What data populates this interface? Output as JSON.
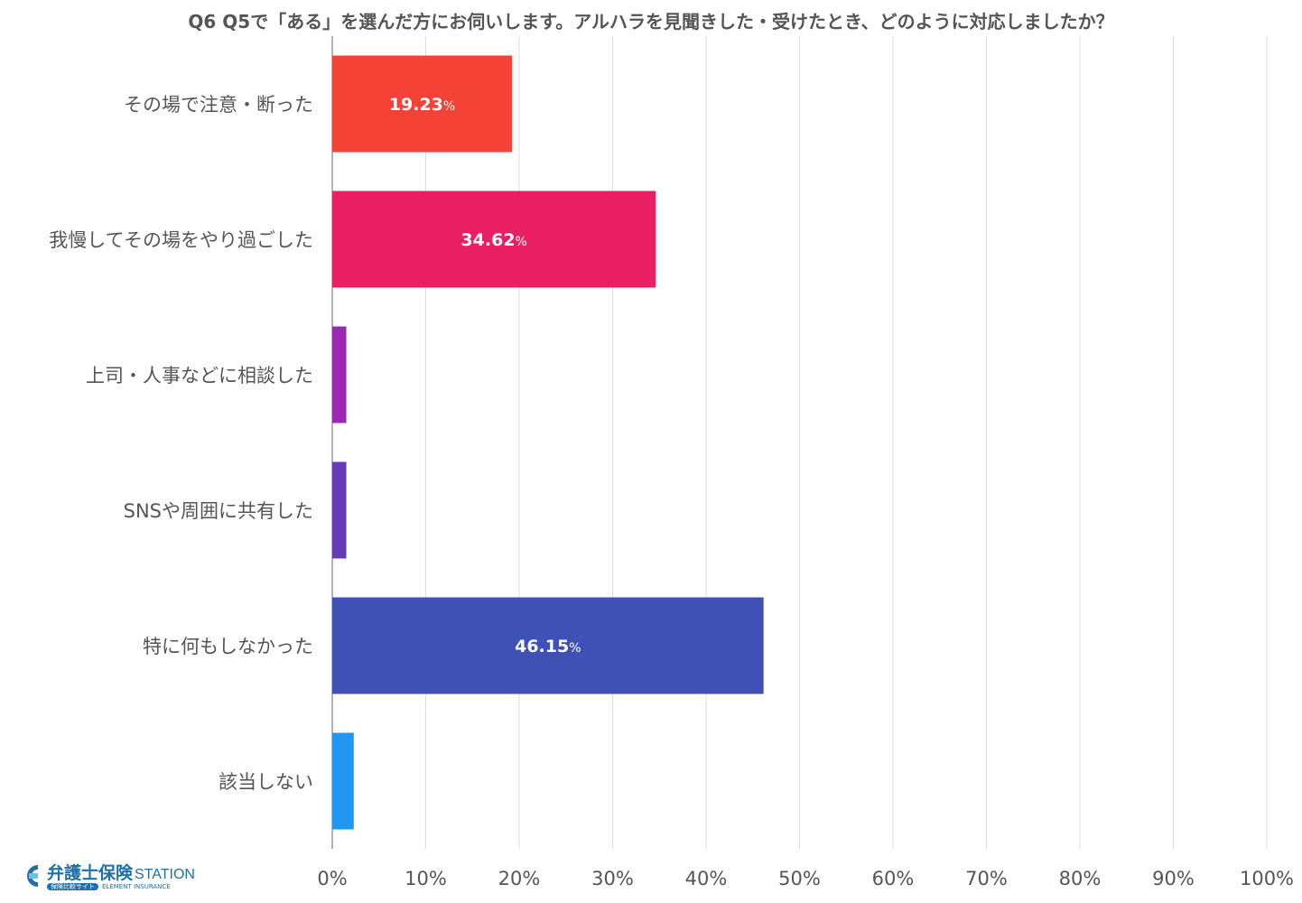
{
  "title": "Q6 Q5で「ある」を選んだ方にお伺いします。アルハラを見聞きした・受けたとき、どのように対応しましたか？",
  "logo": {
    "main": "弁護士保険",
    "station": "STATION",
    "tag": "保険比較サイト",
    "sub": "ELEMENT INSURANCE"
  },
  "chart_data": {
    "type": "bar",
    "orientation": "horizontal",
    "categories": [
      "その場で注意・断った",
      "我慢してその場をやり過ごした",
      "上司・人事などに相談した",
      "SNSや周囲に共有した",
      "特に何もしなかった",
      "該当しない"
    ],
    "values": [
      19.23,
      34.62,
      1.5,
      1.5,
      46.15,
      2.3
    ],
    "value_labels": [
      "19.23",
      "34.62",
      "",
      "",
      "46.15",
      ""
    ],
    "unit": "%",
    "colors": [
      "#f44336",
      "#e91e63",
      "#9c27b0",
      "#673ab7",
      "#3f51b5",
      "#2196f3"
    ],
    "xlim": [
      0,
      100
    ],
    "xticks": [
      0,
      10,
      20,
      30,
      40,
      50,
      60,
      70,
      80,
      90,
      100
    ],
    "xtick_labels": [
      "0%",
      "10%",
      "20%",
      "30%",
      "40%",
      "50%",
      "60%",
      "70%",
      "80%",
      "90%",
      "100%"
    ],
    "grid": true
  }
}
